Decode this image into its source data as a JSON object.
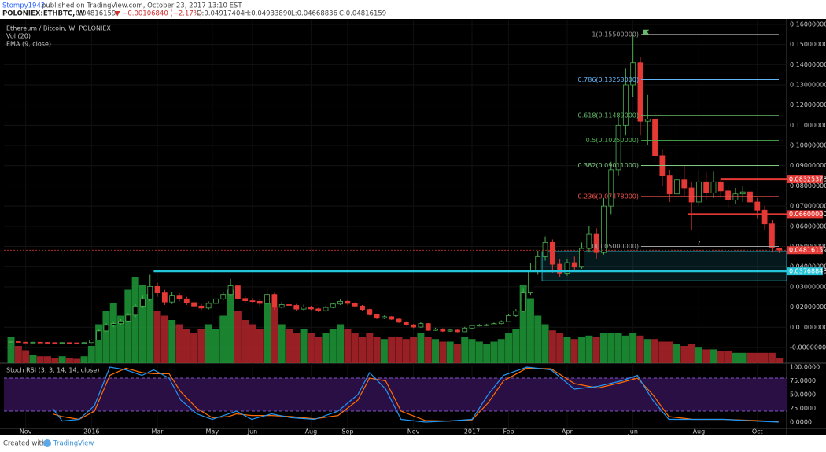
{
  "header": {
    "author": "Stompy1942",
    "published": "published on TradingView.com, October 23, 2017 13:10 EST",
    "symbol": "POLONIEX:ETHBTC, W",
    "last": "0.04816159",
    "change": "▼ −0.00106840 (−2.17%)",
    "o": "O:0.04917404",
    "h": "H:0.04933890",
    "l": "L:0.04668836",
    "c": "C:0.04816159"
  },
  "footer": {
    "created": "Created with",
    "brand": "TradingView"
  },
  "chart_data": {
    "type": "candlestick",
    "legend": [
      "Ethereum / Bitcoin, W, POLONIEX",
      "Vol (20)",
      "EMA (9, close)"
    ],
    "up_color": "#4caf50",
    "down_color": "#e53935",
    "volume_up_color": "#1f9a38",
    "volume_down_color": "#b3262b",
    "xlim": [
      -0.97,
      106
    ],
    "xticks": [
      {
        "value": 2,
        "label": "Nov"
      },
      {
        "value": 11,
        "label": "2016"
      },
      {
        "value": 20,
        "label": "Mar"
      },
      {
        "value": 27.5,
        "label": "May"
      },
      {
        "value": 33,
        "label": "Jun"
      },
      {
        "value": 41,
        "label": "Aug"
      },
      {
        "value": 46,
        "label": "Sep"
      },
      {
        "value": 55,
        "label": "Nov"
      },
      {
        "value": 63,
        "label": "2017"
      },
      {
        "value": 68,
        "label": "Feb"
      },
      {
        "value": 76,
        "label": "Apr"
      },
      {
        "value": 85,
        "label": "Jun"
      },
      {
        "value": 94,
        "label": "Aug"
      },
      {
        "value": 102,
        "label": "Oct"
      }
    ],
    "ylim": [
      -0.0078,
      0.1623
    ],
    "yticks": [
      {
        "value": 0.16,
        "label": "0.16000000"
      },
      {
        "value": 0.15,
        "label": "0.15000000"
      },
      {
        "value": 0.14,
        "label": "0.14000000"
      },
      {
        "value": 0.13,
        "label": "0.13000000"
      },
      {
        "value": 0.12,
        "label": "0.12000000"
      },
      {
        "value": 0.11,
        "label": "0.11000000"
      },
      {
        "value": 0.1,
        "label": "0.10000000"
      },
      {
        "value": 0.09,
        "label": "0.09000000"
      },
      {
        "value": 0.08,
        "label": "0.08000000"
      },
      {
        "value": 0.07,
        "label": "0.07000000"
      },
      {
        "value": 0.06,
        "label": "0.06000000"
      },
      {
        "value": 0.05,
        "label": "0.05000000"
      },
      {
        "value": 0.04,
        "label": "0.04000000"
      },
      {
        "value": 0.03,
        "label": "0.03000000"
      },
      {
        "value": 0.02,
        "label": "0.02000000"
      },
      {
        "value": 0.01,
        "label": "0.01000000"
      },
      {
        "value": 0,
        "label": "-0.00000000"
      }
    ],
    "candles": {
      "open": [
        0.0028,
        0.0029,
        0.0026,
        0.0024,
        0.0026,
        0.0025,
        0.0024,
        0.0023,
        0.0024,
        0.0023,
        0.0022,
        0.0024,
        0.0037,
        0.0082,
        0.011,
        0.0118,
        0.0131,
        0.016,
        0.0205,
        0.024,
        0.0302,
        0.027,
        0.0225,
        0.0258,
        0.024,
        0.0222,
        0.0205,
        0.0195,
        0.0218,
        0.024,
        0.0262,
        0.0305,
        0.0242,
        0.0231,
        0.0228,
        0.0218,
        0.0262,
        0.0199,
        0.0212,
        0.0208,
        0.019,
        0.02,
        0.0191,
        0.0182,
        0.0198,
        0.0215,
        0.0228,
        0.0218,
        0.0205,
        0.0188,
        0.0162,
        0.0145,
        0.0152,
        0.014,
        0.0125,
        0.0112,
        0.0101,
        0.0118,
        0.0085,
        0.0092,
        0.0081,
        0.0086,
        0.0078,
        0.0096,
        0.0108,
        0.011,
        0.0112,
        0.0118,
        0.0128,
        0.0158,
        0.018,
        0.027,
        0.038,
        0.045,
        0.052,
        0.0412,
        0.0368,
        0.042,
        0.0398,
        0.049,
        0.056,
        0.047,
        0.07,
        0.088,
        0.11,
        0.13,
        0.141,
        0.112,
        0.113,
        0.095,
        0.085,
        0.076,
        0.083,
        0.079,
        0.072,
        0.082,
        0.0765,
        0.082,
        0.0775,
        0.073,
        0.076,
        0.077,
        0.072,
        0.068,
        0.0612,
        0.04917404
      ],
      "high": [
        0.0031,
        0.0031,
        0.0028,
        0.0028,
        0.0027,
        0.0027,
        0.0025,
        0.0026,
        0.0025,
        0.0024,
        0.0026,
        0.004,
        0.009,
        0.012,
        0.013,
        0.014,
        0.017,
        0.0215,
        0.026,
        0.036,
        0.032,
        0.0285,
        0.0275,
        0.0268,
        0.025,
        0.0232,
        0.0215,
        0.0228,
        0.025,
        0.0275,
        0.034,
        0.0312,
        0.0255,
        0.0245,
        0.0238,
        0.029,
        0.027,
        0.0225,
        0.0222,
        0.0215,
        0.0212,
        0.0206,
        0.0196,
        0.0205,
        0.0222,
        0.0238,
        0.0234,
        0.0223,
        0.021,
        0.0192,
        0.0166,
        0.0158,
        0.0156,
        0.0144,
        0.013,
        0.0116,
        0.0125,
        0.0121,
        0.0098,
        0.0095,
        0.009,
        0.0089,
        0.0102,
        0.0112,
        0.0116,
        0.0117,
        0.0123,
        0.0134,
        0.0165,
        0.019,
        0.029,
        0.042,
        0.048,
        0.055,
        0.0535,
        0.044,
        0.044,
        0.045,
        0.052,
        0.06,
        0.059,
        0.074,
        0.092,
        0.114,
        0.138,
        0.155,
        0.144,
        0.125,
        0.116,
        0.098,
        0.088,
        0.112,
        0.09,
        0.082,
        0.088,
        0.087,
        0.087,
        0.084,
        0.08,
        0.079,
        0.08,
        0.079,
        0.074,
        0.07,
        0.063,
        0.0493389
      ],
      "low": [
        0.0026,
        0.0025,
        0.0023,
        0.0023,
        0.0024,
        0.0023,
        0.0022,
        0.0022,
        0.0022,
        0.0021,
        0.0021,
        0.0023,
        0.0036,
        0.0078,
        0.01,
        0.0112,
        0.0125,
        0.015,
        0.0195,
        0.023,
        0.025,
        0.021,
        0.0215,
        0.0228,
        0.021,
        0.0198,
        0.0185,
        0.0188,
        0.021,
        0.0232,
        0.0255,
        0.0235,
        0.0222,
        0.0218,
        0.0205,
        0.0212,
        0.0185,
        0.0192,
        0.0198,
        0.0182,
        0.0184,
        0.0185,
        0.0176,
        0.0178,
        0.0194,
        0.021,
        0.0211,
        0.0199,
        0.0182,
        0.0158,
        0.014,
        0.0141,
        0.0136,
        0.0121,
        0.0108,
        0.0096,
        0.0098,
        0.0082,
        0.0082,
        0.0077,
        0.0078,
        0.0075,
        0.0076,
        0.0094,
        0.0104,
        0.0106,
        0.0109,
        0.0115,
        0.0125,
        0.0152,
        0.0175,
        0.026,
        0.036,
        0.043,
        0.037,
        0.035,
        0.0355,
        0.0385,
        0.039,
        0.047,
        0.044,
        0.046,
        0.066,
        0.085,
        0.105,
        0.124,
        0.105,
        0.1,
        0.092,
        0.08,
        0.072,
        0.074,
        0.075,
        0.058,
        0.07,
        0.073,
        0.074,
        0.074,
        0.069,
        0.071,
        0.072,
        0.069,
        0.064,
        0.058,
        0.047,
        0.04668836
      ],
      "close": [
        0.0029,
        0.0026,
        0.0024,
        0.0026,
        0.0025,
        0.0024,
        0.0023,
        0.0024,
        0.0023,
        0.0022,
        0.0024,
        0.0037,
        0.0082,
        0.011,
        0.0118,
        0.0131,
        0.016,
        0.0205,
        0.024,
        0.0302,
        0.027,
        0.0225,
        0.0258,
        0.024,
        0.0222,
        0.0205,
        0.0195,
        0.0218,
        0.024,
        0.0262,
        0.0305,
        0.0242,
        0.0231,
        0.0228,
        0.0218,
        0.0262,
        0.0199,
        0.0212,
        0.0208,
        0.019,
        0.02,
        0.0191,
        0.0182,
        0.0198,
        0.0215,
        0.0228,
        0.0218,
        0.0205,
        0.0188,
        0.0162,
        0.0145,
        0.0152,
        0.014,
        0.0125,
        0.0112,
        0.0101,
        0.0118,
        0.0085,
        0.0092,
        0.0081,
        0.0086,
        0.0078,
        0.0096,
        0.0108,
        0.011,
        0.0112,
        0.0118,
        0.0128,
        0.0158,
        0.018,
        0.027,
        0.038,
        0.045,
        0.052,
        0.0412,
        0.0368,
        0.042,
        0.0398,
        0.049,
        0.056,
        0.047,
        0.07,
        0.088,
        0.11,
        0.13,
        0.141,
        0.112,
        0.113,
        0.095,
        0.085,
        0.076,
        0.083,
        0.079,
        0.072,
        0.082,
        0.0765,
        0.082,
        0.0775,
        0.073,
        0.076,
        0.077,
        0.072,
        0.068,
        0.0612,
        0.0492,
        0.04816159
      ],
      "volume": [
        30,
        20,
        15,
        10,
        8,
        8,
        6,
        8,
        6,
        5,
        8,
        20,
        45,
        60,
        70,
        55,
        85,
        100,
        90,
        80,
        60,
        55,
        50,
        45,
        40,
        35,
        40,
        45,
        40,
        55,
        85,
        60,
        50,
        45,
        40,
        70,
        65,
        45,
        40,
        35,
        40,
        35,
        30,
        35,
        40,
        45,
        40,
        35,
        30,
        35,
        30,
        28,
        30,
        30,
        28,
        30,
        35,
        30,
        28,
        25,
        25,
        22,
        30,
        28,
        25,
        22,
        25,
        28,
        35,
        40,
        90,
        75,
        55,
        45,
        38,
        35,
        30,
        28,
        30,
        32,
        30,
        35,
        35,
        35,
        32,
        35,
        32,
        28,
        28,
        25,
        25,
        22,
        20,
        22,
        18,
        16,
        16,
        14,
        14,
        12,
        12,
        12,
        12,
        12,
        12,
        6
      ]
    },
    "volume_ylim": [
      0,
      100
    ],
    "fib_levels": [
      {
        "value": 0.155,
        "label": "1(0.15500000)",
        "color": "#9e9e9e"
      },
      {
        "value": 0.13253,
        "label": "0.786(0.13253000)",
        "color": "#64b5f6"
      },
      {
        "value": 0.11489,
        "label": "0.618(0.11489000)",
        "color": "#66bb6a"
      },
      {
        "value": 0.1025,
        "label": "0.5(0.10250000)",
        "color": "#4caf50"
      },
      {
        "value": 0.09011,
        "label": "0.382(0.09011000)",
        "color": "#81c784"
      },
      {
        "value": 0.07478,
        "label": "0.236(0.07478000)",
        "color": "#ef5350"
      },
      {
        "value": 0.05,
        "label": "0(0.05000000)",
        "color": "#9e9e9e"
      }
    ],
    "zones": [
      {
        "low": 0.0377,
        "high": 0.0475
      },
      {
        "low": 0.033,
        "high": 0.0377
      }
    ],
    "price_labels": [
      {
        "value": 0.08325378,
        "label": "0.08325378",
        "color": "#e53935"
      },
      {
        "value": 0.066,
        "label": "0.06600000",
        "color": "#e53935"
      },
      {
        "value": 0.04816159,
        "label": "0.04816159",
        "color": "#e53935"
      },
      {
        "value": 0.03768848,
        "label": "0.03768848",
        "color": "#26c6da"
      }
    ],
    "annotation": {
      "text": "?",
      "x": 94,
      "value": 0.0515
    },
    "rsi": {
      "title": "Stoch RSI (3, 3, 14, 14, close)",
      "ylim": [
        -11.4,
        104.3
      ],
      "bands": [
        20,
        80
      ],
      "yticks": [
        {
          "value": 100,
          "label": "100.0000"
        },
        {
          "value": 75,
          "label": "75.0000"
        },
        {
          "value": 50,
          "label": "50.0000"
        },
        {
          "value": 25,
          "label": "25.0000"
        },
        {
          "value": 0,
          "label": "0.0000"
        }
      ],
      "x": [
        5.7,
        7,
        9.3,
        11.4,
        13.5,
        15.7,
        17.9,
        19.5,
        21.6,
        23.2,
        25.4,
        27.5,
        29.7,
        30.8,
        32.9,
        35.6,
        38.3,
        41.5,
        44.7,
        47.4,
        49,
        51.2,
        53.3,
        56.6,
        59.8,
        63,
        65.2,
        67.3,
        70.5,
        73.8,
        77,
        80.2,
        83.4,
        85.6,
        87.7,
        89.9,
        93.2,
        97.4,
        101.7,
        104.9
      ],
      "k": [
        25,
        2,
        5,
        30,
        100,
        95,
        85,
        95,
        80,
        40,
        15,
        5,
        15,
        20,
        5,
        15,
        8,
        5,
        20,
        50,
        90,
        60,
        5,
        0,
        2,
        5,
        50,
        85,
        100,
        95,
        60,
        65,
        75,
        85,
        40,
        5,
        5,
        5,
        2,
        0
      ],
      "d": [
        15,
        10,
        5,
        20,
        85,
        98,
        90,
        88,
        88,
        55,
        25,
        8,
        10,
        15,
        12,
        12,
        10,
        6,
        12,
        40,
        80,
        75,
        20,
        3,
        2,
        4,
        35,
        75,
        98,
        97,
        70,
        62,
        72,
        80,
        50,
        10,
        5,
        5,
        3,
        1
      ],
      "k_color": "#2196f3",
      "d_color": "#ff6d00"
    }
  }
}
